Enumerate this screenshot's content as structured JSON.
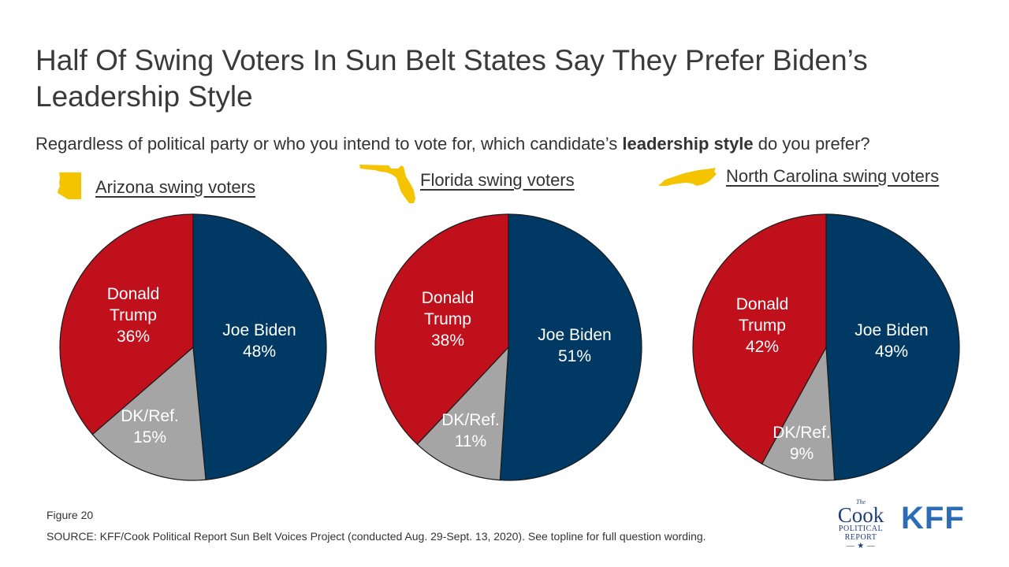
{
  "title": "Half Of Swing Voters In Sun Belt States Say They Prefer Biden’s Leadership Style",
  "subtitle": {
    "before": "Regardless of political party or who you intend to vote for, which candidate’s ",
    "bold": "leadership style",
    "after": " do you prefer?"
  },
  "colors": {
    "biden": "#003A64",
    "trump": "#C0101C",
    "dk": "#A5A5A5",
    "state": "#F5C400"
  },
  "chart_data": [
    {
      "type": "pie",
      "title": "Arizona swing voters",
      "slices": [
        {
          "name": "Joe Biden",
          "value": 48,
          "display": "48%"
        },
        {
          "name": "DK/Ref.",
          "value": 15,
          "display": "15%"
        },
        {
          "name": "Donald Trump",
          "value": 36,
          "display": "36%"
        }
      ]
    },
    {
      "type": "pie",
      "title": "Florida swing voters",
      "slices": [
        {
          "name": "Joe Biden",
          "value": 51,
          "display": "51%"
        },
        {
          "name": "DK/Ref.",
          "value": 11,
          "display": "11%"
        },
        {
          "name": "Donald Trump",
          "value": 38,
          "display": "38%"
        }
      ]
    },
    {
      "type": "pie",
      "title": "North Carolina swing voters",
      "slices": [
        {
          "name": "Joe Biden",
          "value": 49,
          "display": "49%"
        },
        {
          "name": "DK/Ref.",
          "value": 9,
          "display": "9%"
        },
        {
          "name": "Donald Trump",
          "value": 42,
          "display": "42%"
        }
      ]
    }
  ],
  "footer": {
    "figure": "Figure 20",
    "source": "SOURCE: KFF/Cook Political Report Sun Belt Voices Project (conducted Aug. 29-Sept. 13, 2020). See topline for full question wording."
  },
  "logos": {
    "cook": {
      "the": "The",
      "name": "Cook",
      "line1": "POLITICAL",
      "line2": "REPORT",
      "star": "— ★ —"
    },
    "kff": "KFF"
  }
}
